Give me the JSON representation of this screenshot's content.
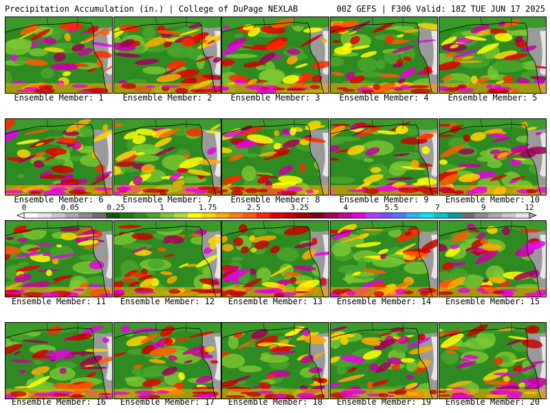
{
  "header": {
    "left": "Precipitation Accumulation (in.) | College of DuPage NEXLAB",
    "right": "00Z GEFS | F306 Valid: 18Z TUE JUN 17 2025"
  },
  "panels": [
    {
      "label": "Ensemble Member: 1"
    },
    {
      "label": "Ensemble Member: 2"
    },
    {
      "label": "Ensemble Member: 3"
    },
    {
      "label": "Ensemble Member: 4"
    },
    {
      "label": "Ensemble Member: 5"
    },
    {
      "label": "Ensemble Member: 6"
    },
    {
      "label": "Ensemble Member: 7"
    },
    {
      "label": "Ensemble Member: 8"
    },
    {
      "label": "Ensemble Member: 9"
    },
    {
      "label": "Ensemble Member: 10"
    },
    {
      "label": "Ensemble Member: 11"
    },
    {
      "label": "Ensemble Member: 12"
    },
    {
      "label": "Ensemble Member: 13"
    },
    {
      "label": "Ensemble Member: 14"
    },
    {
      "label": "Ensemble Member: 15"
    },
    {
      "label": "Ensemble Member: 16"
    },
    {
      "label": "Ensemble Member: 17"
    },
    {
      "label": "Ensemble Member: 18"
    },
    {
      "label": "Ensemble Member: 19"
    },
    {
      "label": "Ensemble Member: 20"
    }
  ],
  "colorbar": {
    "tick_labels": [
      "0",
      "0.05",
      "0.25",
      "1",
      "1.75",
      "2.5",
      "3.25",
      "4",
      "5.5",
      "7",
      "9",
      "12"
    ],
    "colors": [
      "#ffffff",
      "#e6e6e6",
      "#c8c8c8",
      "#aaaaaa",
      "#8c8c8c",
      "#6e6e6e",
      "#0a5a0a",
      "#1e7a14",
      "#2e8b22",
      "#4aa52a",
      "#7cc832",
      "#aee03c",
      "#ffff00",
      "#ffd700",
      "#ffaa00",
      "#ff8000",
      "#ff5a00",
      "#ff2800",
      "#e60000",
      "#c80000",
      "#a00000",
      "#780014",
      "#a0005a",
      "#c800a0",
      "#e600e6",
      "#b43cff",
      "#7850ff",
      "#5078ff",
      "#28b4ff",
      "#00e6ff",
      "#00c8c8",
      "#00a0a0",
      "#6e6e6e",
      "#8c8c8c",
      "#aaaaaa",
      "#c8c8c8",
      "#e6e6e6"
    ]
  }
}
